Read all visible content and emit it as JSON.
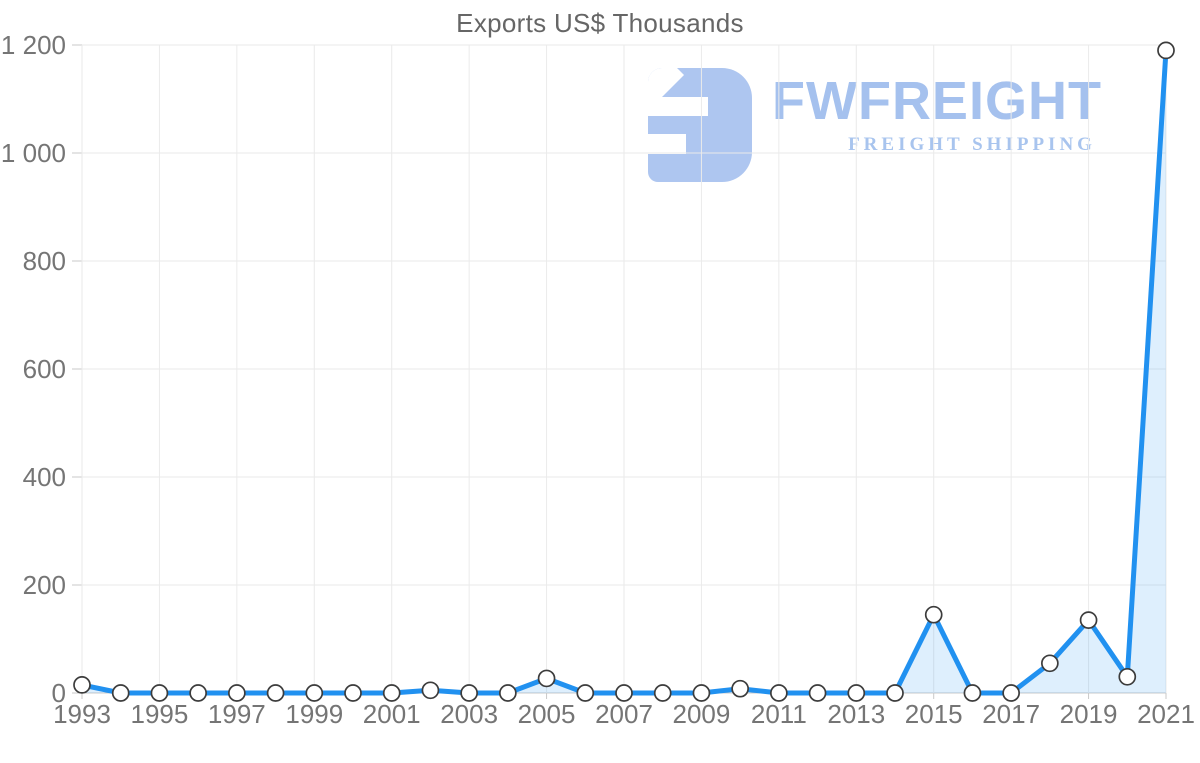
{
  "title": "Exports US$ Thousands",
  "watermark": {
    "brand": "FWFREIGHT",
    "tagline": "FREIGHT SHIPPING",
    "logo_color": "#aec6f0"
  },
  "chart_data": {
    "type": "area",
    "title": "Exports US$ Thousands",
    "xlabel": "",
    "ylabel": "",
    "x": [
      1993,
      1994,
      1995,
      1996,
      1997,
      1998,
      1999,
      2000,
      2001,
      2002,
      2003,
      2004,
      2005,
      2006,
      2007,
      2008,
      2009,
      2010,
      2011,
      2012,
      2013,
      2014,
      2015,
      2016,
      2017,
      2018,
      2019,
      2020,
      2021
    ],
    "values": [
      15,
      0,
      0,
      0,
      0,
      0,
      0,
      0,
      0,
      5,
      0,
      0,
      27,
      0,
      0,
      0,
      0,
      8,
      0,
      0,
      0,
      0,
      145,
      0,
      0,
      55,
      135,
      30,
      1190
    ],
    "ylim": [
      0,
      1200
    ],
    "ytick_values": [
      0,
      200,
      400,
      600,
      800,
      1000,
      1200
    ],
    "ytick_labels": [
      "0",
      "200",
      "400",
      "600",
      "800",
      "1 000",
      "1 200"
    ],
    "xtick_values": [
      1993,
      1995,
      1997,
      1999,
      2001,
      2003,
      2005,
      2007,
      2009,
      2011,
      2013,
      2015,
      2017,
      2019,
      2021
    ],
    "xtick_labels": [
      "1993",
      "1995",
      "1997",
      "1999",
      "2001",
      "2003",
      "2005",
      "2007",
      "2009",
      "2011",
      "2013",
      "2015",
      "2017",
      "2019",
      "2021"
    ],
    "grid": true,
    "legend": "none",
    "marker": "circle",
    "colors": {
      "line": "#2191f0",
      "fill": "rgba(33,145,240,0.15)",
      "marker_fill": "#ffffff",
      "marker_stroke": "#3c3c3c",
      "grid": "#eaeaea",
      "axis": "#c9c9c9",
      "label": "#757575",
      "title": "#666666"
    }
  }
}
